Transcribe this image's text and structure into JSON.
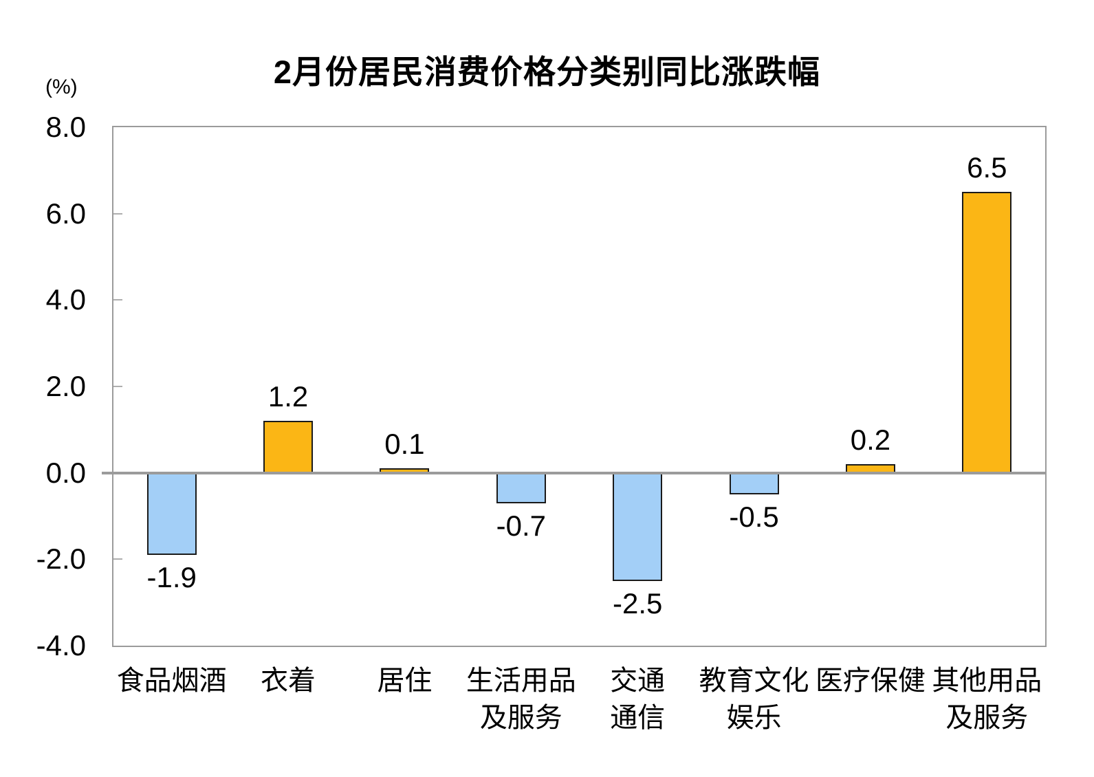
{
  "chart_data": {
    "type": "bar",
    "title": "2月份居民消费价格分类别同比涨跌幅",
    "unit_label": "(%)",
    "categories": [
      "食品烟酒",
      "衣着",
      "居住",
      "生活用品\n及服务",
      "交通\n通信",
      "教育文化\n娱乐",
      "医疗保健",
      "其他用品\n及服务"
    ],
    "values": [
      -1.9,
      1.2,
      0.1,
      -0.7,
      -2.5,
      -0.5,
      0.2,
      6.5
    ],
    "value_labels": [
      "-1.9",
      "1.2",
      "0.1",
      "-0.7",
      "-2.5",
      "-0.5",
      "0.2",
      "6.5"
    ],
    "ylim": [
      -4.0,
      8.0
    ],
    "ytick_step": 2,
    "ytick_labels": [
      "8.0",
      "6.0",
      "4.0",
      "2.0",
      "0.0",
      "-2.0",
      "-4.0"
    ],
    "grid": false,
    "legend": "none",
    "layout_hint": "single horizontal category axis, value labels outside bar ends",
    "colors": {
      "positive_bar": "#FBB615",
      "negative_bar": "#A3CFF7",
      "bar_border": "#1A1A1A",
      "axis": "#9B9B9B",
      "tick": "#AEAEAE",
      "text": "#000000"
    }
  }
}
